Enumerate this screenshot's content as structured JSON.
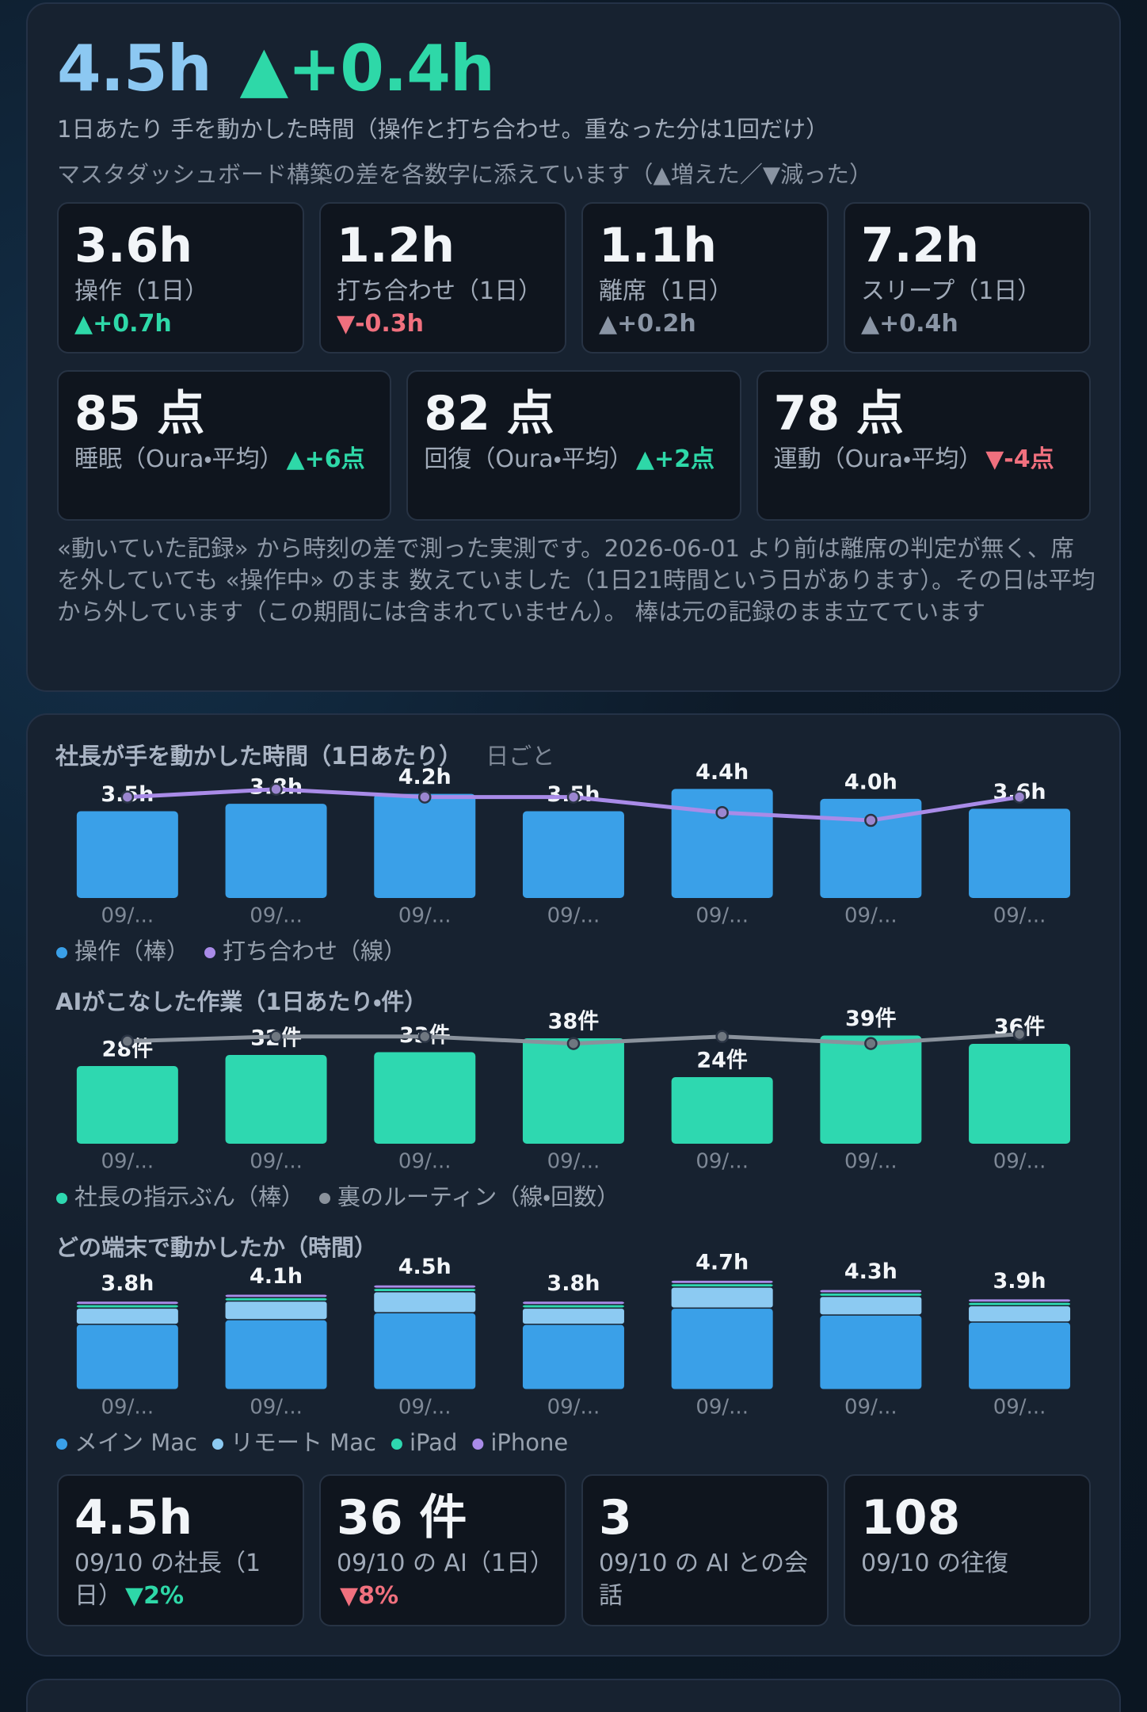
{
  "header": {
    "value": "4.5h",
    "delta": "▲+0.4h",
    "subtitle": "1日あたり 手を動かした時間（操作と打ち合わせ。重なった分は1回だけ）",
    "legend_note": "マスタダッシュボード構築の差を各数字に添えています（▲増えた／▼減った）"
  },
  "metrics": [
    {
      "value": "3.6h",
      "label": "操作（1日）",
      "delta": "▲+0.7h",
      "delta_color": "#2ed8a8"
    },
    {
      "value": "1.2h",
      "label": "打ち合わせ（1日）",
      "delta": "▼-0.3h",
      "delta_color": "#f0707e"
    },
    {
      "value": "1.1h",
      "label": "離席（1日）",
      "delta": "▲+0.2h",
      "delta_color": "#8a95a5"
    },
    {
      "value": "7.2h",
      "label": "スリープ（1日）",
      "delta": "▲+0.4h",
      "delta_color": "#8a95a5"
    }
  ],
  "scores": [
    {
      "value": "85 点",
      "label": "睡眠（Oura・平均）",
      "delta": "▲+6点",
      "delta_color": "#2ed8a8"
    },
    {
      "value": "82 点",
      "label": "回復（Oura・平均）",
      "delta": "▲+2点",
      "delta_color": "#2ed8a8"
    },
    {
      "value": "78 点",
      "label": "運動（Oura・平均）",
      "delta": "▼-4点",
      "delta_color": "#f0707e"
    }
  ],
  "footnote": "«動いていた記録» から時刻の差で測った実測です。2026-06-01 より前は離席の判定が無く、席を外していても «操作中» のまま 数えていました（1日21時間という日があります）。その日は平均から外しています（この期間には含まれていません）。 棒は元の記録のまま立てています",
  "chart_data": [
    {
      "type": "combo",
      "title": "社長が手を動かした時間（1日あたり）",
      "subtitle": "日ごと",
      "categories": [
        "09/...",
        "09/...",
        "09/...",
        "09/...",
        "09/...",
        "09/...",
        "09/..."
      ],
      "series": [
        {
          "name": "操作（棒）",
          "color": "#3aa0e8",
          "values": [
            3.5,
            3.8,
            4.2,
            3.5,
            4.4,
            4.0,
            3.6
          ],
          "value_labels": [
            "3.5h",
            "3.8h",
            "4.2h",
            "3.5h",
            "4.4h",
            "4.0h",
            "3.6h"
          ]
        },
        {
          "name": "打ち合わせ（線）",
          "color": "#a98be8",
          "values": [
            1.3,
            1.4,
            1.3,
            1.3,
            1.1,
            1.0,
            1.3
          ],
          "axis": "y2"
        }
      ],
      "ylim": [
        0,
        4.7
      ],
      "y2lim": [
        0,
        1.5
      ]
    },
    {
      "type": "combo",
      "title": "AIがこなした作業（1日あたり・件）",
      "categories": [
        "09/...",
        "09/...",
        "09/...",
        "09/...",
        "09/...",
        "09/...",
        "09/..."
      ],
      "series": [
        {
          "name": "社長の指示ぶん（棒）",
          "color": "#2ed8b0",
          "values": [
            28,
            32,
            33,
            38,
            24,
            39,
            36
          ],
          "value_labels": [
            "28件",
            "32件",
            "33件",
            "38件",
            "24件",
            "39件",
            "36件"
          ]
        },
        {
          "name": "裏のルーティン（線・回数）",
          "color": "#8a929c",
          "values": [
            88,
            92,
            92,
            86,
            92,
            86,
            94
          ],
          "axis": "y2"
        }
      ],
      "ylim": [
        0,
        42
      ],
      "y2lim": [
        0,
        100
      ]
    },
    {
      "type": "stacked",
      "title": "どの端末で動かしたか（時間）",
      "categories": [
        "09/...",
        "09/...",
        "09/...",
        "09/...",
        "09/...",
        "09/...",
        "09/..."
      ],
      "series": [
        {
          "name": "メイン Mac",
          "color": "#3aa0e8",
          "values": [
            2.8,
            3.0,
            3.3,
            2.8,
            3.5,
            3.2,
            2.9
          ]
        },
        {
          "name": "リモート Mac",
          "color": "#8ccaf2",
          "values": [
            0.7,
            0.8,
            0.9,
            0.7,
            0.9,
            0.8,
            0.7
          ]
        },
        {
          "name": "iPad",
          "color": "#2ed8b0",
          "values": [
            0.15,
            0.15,
            0.15,
            0.15,
            0.15,
            0.15,
            0.15
          ]
        },
        {
          "name": "iPhone",
          "color": "#a98be8",
          "values": [
            0.15,
            0.15,
            0.15,
            0.15,
            0.15,
            0.15,
            0.15
          ]
        }
      ],
      "total_labels": [
        "3.8h",
        "4.1h",
        "4.5h",
        "3.8h",
        "4.7h",
        "4.3h",
        "3.9h"
      ],
      "ylim": [
        0,
        5
      ]
    }
  ],
  "daily": [
    {
      "value": "4.5h",
      "label": "09/10 の社長（1日）",
      "delta": "▼2%",
      "delta_color": "#2ed8a8"
    },
    {
      "value": "36 件",
      "label": "09/10 の AI（1日）",
      "delta": "▼8%",
      "delta_color": "#f0707e"
    },
    {
      "value": "3",
      "label": "09/10 の AI との会話"
    },
    {
      "value": "108",
      "label": "09/10 の往復"
    }
  ]
}
